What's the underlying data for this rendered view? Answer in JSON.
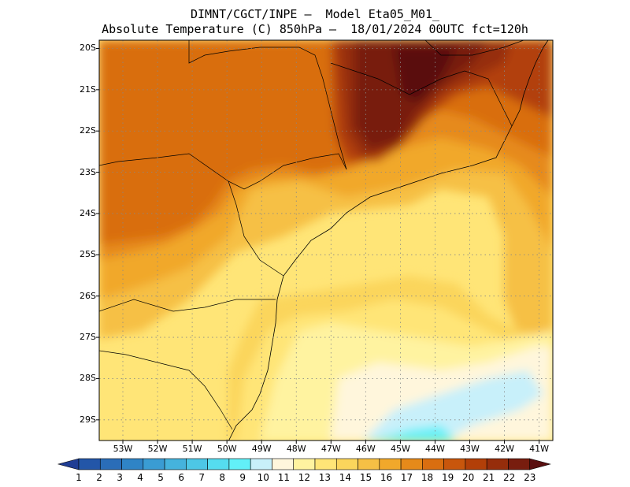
{
  "title_line1": "DIMNT/CGCT/INPE –  Model Eta05_M01_",
  "title_line2": "Absolute Temperature (C) 850hPa –  18/01/2024 00UTC fct=120h",
  "lat_labels": [
    "20S",
    "21S",
    "22S",
    "23S",
    "24S",
    "25S",
    "26S",
    "27S",
    "28S",
    "29S"
  ],
  "lon_labels": [
    "53W",
    "52W",
    "51W",
    "50W",
    "49W",
    "48W",
    "47W",
    "46W",
    "45W",
    "44W",
    "43W",
    "42W",
    "41W"
  ],
  "colorbar": {
    "labels": [
      "1",
      "2",
      "3",
      "4",
      "5",
      "6",
      "7",
      "8",
      "9",
      "10",
      "11",
      "12",
      "13",
      "14",
      "15",
      "16",
      "17",
      "18",
      "19",
      "20",
      "21",
      "22",
      "23"
    ],
    "colors": [
      "#1f3d94",
      "#2356a8",
      "#2a6db8",
      "#2f84c6",
      "#3a9cd3",
      "#45b3dd",
      "#4dc7e6",
      "#55dcef",
      "#62f0f8",
      "#c8f0fa",
      "#fff6dc",
      "#fff3a0",
      "#ffe577",
      "#fbd55c",
      "#f6c045",
      "#f1a82b",
      "#e68a1a",
      "#d96e10",
      "#c8560c",
      "#b23f08",
      "#962d0b",
      "#781d0e",
      "#5a0f10"
    ]
  },
  "map": {
    "projection": "lat-lon",
    "lon_range": [
      -53.5,
      -40.5
    ],
    "lat_range": [
      -29.5,
      -19.8
    ],
    "grid": true,
    "grid_style": "dotted",
    "variable": "temperature_850hPa_C"
  }
}
